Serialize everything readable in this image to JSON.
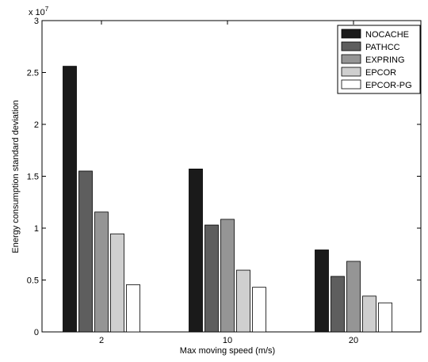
{
  "chart_data": {
    "type": "bar",
    "title": "",
    "xlabel": "Max moving speed (m/s)",
    "ylabel": "Energy consumption standard deviation",
    "y_scale_label": "x 10",
    "y_scale_exponent": "7",
    "categories": [
      "2",
      "10",
      "20"
    ],
    "ylim": [
      0,
      3
    ],
    "yticks": [
      "0",
      "0.5",
      "1",
      "1.5",
      "2",
      "2.5",
      "3"
    ],
    "grid": false,
    "legend_position": "top-right",
    "series": [
      {
        "name": "NOCACHE",
        "color": "#1a1a1a",
        "values": [
          2.56,
          1.57,
          0.79
        ]
      },
      {
        "name": "PATHCC",
        "color": "#5e5e5e",
        "values": [
          1.55,
          1.03,
          0.535
        ]
      },
      {
        "name": "EXPRING",
        "color": "#959595",
        "values": [
          1.155,
          1.085,
          0.68
        ]
      },
      {
        "name": "EPCOR",
        "color": "#cfcfcf",
        "values": [
          0.945,
          0.595,
          0.345
        ]
      },
      {
        "name": "EPCOR-PG",
        "color": "#ffffff",
        "values": [
          0.455,
          0.43,
          0.28
        ]
      }
    ]
  }
}
